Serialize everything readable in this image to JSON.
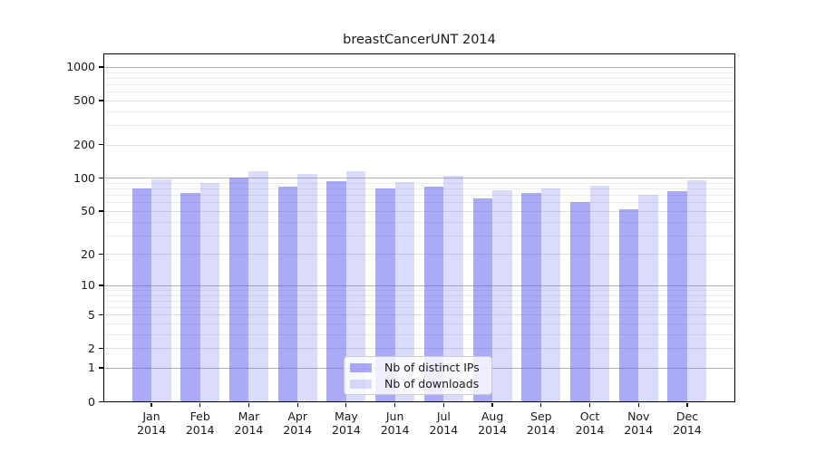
{
  "chart_data": {
    "type": "bar",
    "title": "breastCancerUNT 2014",
    "categories": [
      "Jan 2014",
      "Feb 2014",
      "Mar 2014",
      "Apr 2014",
      "May 2014",
      "Jun 2014",
      "Jul 2014",
      "Aug 2014",
      "Sep 2014",
      "Oct 2014",
      "Nov 2014",
      "Dec 2014"
    ],
    "series": [
      {
        "name": "Nb of distinct IPs",
        "color": "#5555f0",
        "alpha": 0.5,
        "values": [
          81,
          73,
          100,
          84,
          94,
          80,
          84,
          65,
          73,
          60,
          52,
          76
        ]
      },
      {
        "name": "Nb of downloads",
        "color": "#5555f0",
        "alpha": 0.21,
        "values": [
          97,
          90,
          115,
          108,
          115,
          92,
          105,
          78,
          81,
          85,
          70,
          95
        ]
      }
    ],
    "yscale": "log1p",
    "yticks": [
      0,
      1,
      2,
      5,
      10,
      20,
      50,
      100,
      200,
      500,
      1000
    ],
    "ylim": [
      0,
      1325
    ],
    "grid": true,
    "legend_position": "lower center"
  },
  "colors": {
    "grid_major": "#b3b3b3",
    "grid_mid": "#e0e0e0",
    "grid_minor": "#ebebeb",
    "axis": "#000000",
    "text": "#1a1a1a",
    "background": "#ffffff"
  }
}
